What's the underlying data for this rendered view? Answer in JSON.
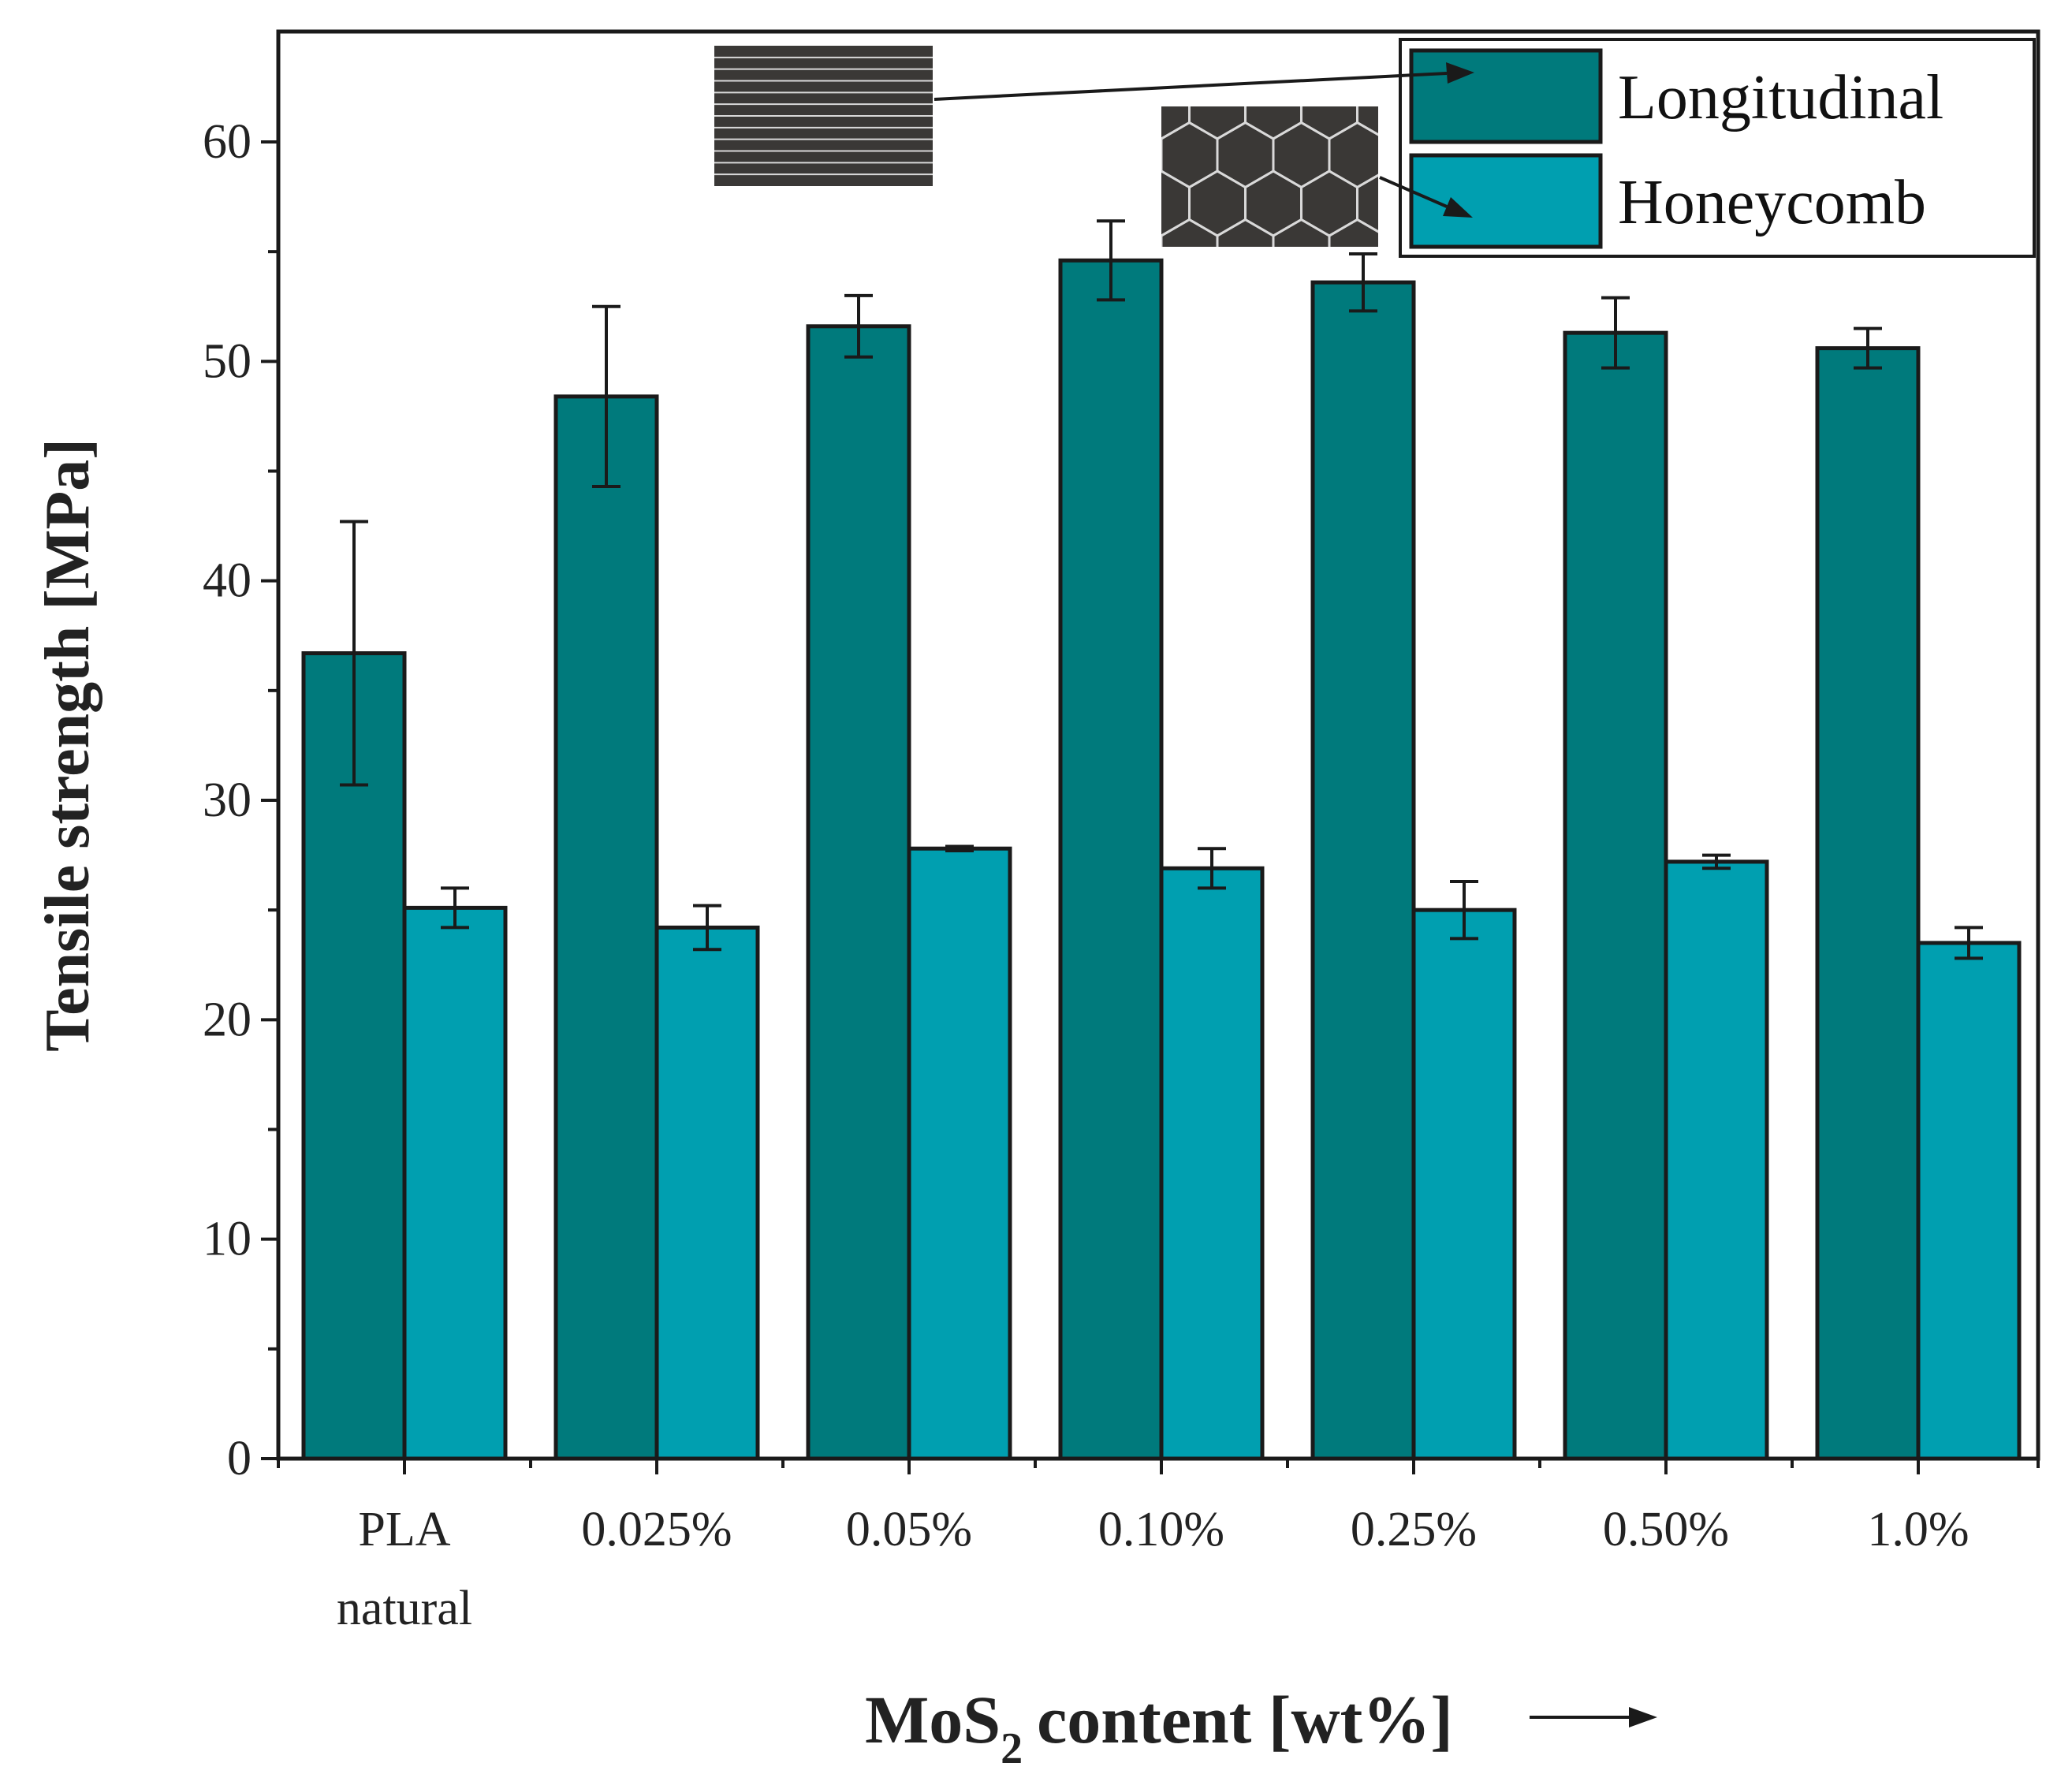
{
  "chart_data": {
    "type": "bar",
    "title": "",
    "xlabel": "MoS",
    "xlabel_subscript": "2",
    "xlabel_suffix": "content [wt%]",
    "ylabel": "Tensile strength [MPa]",
    "ylim": [
      0,
      65
    ],
    "yticks": [
      0,
      10,
      20,
      30,
      40,
      50,
      60
    ],
    "categories": [
      {
        "line1": "PLA",
        "line2": "natural"
      },
      {
        "line1": "0.025%",
        "line2": ""
      },
      {
        "line1": "0.05%",
        "line2": ""
      },
      {
        "line1": "0.10%",
        "line2": ""
      },
      {
        "line1": "0.25%",
        "line2": ""
      },
      {
        "line1": "0.50%",
        "line2": ""
      },
      {
        "line1": "1.0%",
        "line2": ""
      }
    ],
    "series": [
      {
        "name": "Longitudinal",
        "color": "#007a7c",
        "values": [
          36.7,
          48.4,
          51.6,
          54.6,
          53.6,
          51.3,
          50.6
        ],
        "errors": [
          6.0,
          4.1,
          1.4,
          1.8,
          1.3,
          1.6,
          0.9
        ]
      },
      {
        "name": "Honeycomb",
        "color": "#009fb0",
        "values": [
          25.1,
          24.2,
          27.8,
          26.9,
          25.0,
          27.2,
          23.5
        ],
        "errors": [
          0.9,
          1.0,
          0.1,
          0.9,
          1.3,
          0.3,
          0.7
        ]
      }
    ],
    "legend_position": "top-right",
    "grid": false
  },
  "colors": {
    "axis": "#1a1a1a",
    "bar_outline": "#1a1a1a",
    "inset_fill": "#3a3836",
    "inset_lines": "#d9d9d9"
  }
}
